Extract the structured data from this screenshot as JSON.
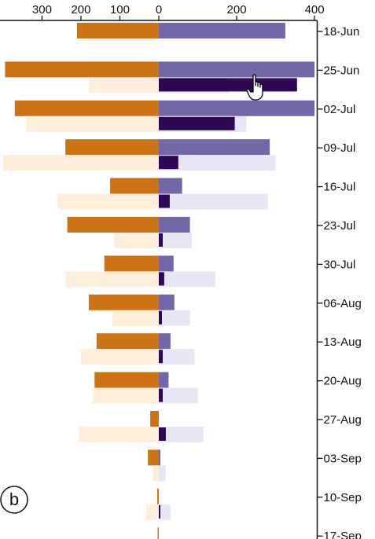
{
  "chart_data": {
    "type": "bar",
    "orientation": "horizontal-diverging",
    "panel_label": "b",
    "categories": [
      "18-Jun",
      "25-Jun",
      "02-Jul",
      "09-Jul",
      "16-Jul",
      "23-Jul",
      "30-Jul",
      "06-Aug",
      "13-Aug",
      "20-Aug",
      "27-Aug",
      "03-Sep",
      "10-Sep",
      "17-Sep"
    ],
    "x_ticks": [
      {
        "value": -300,
        "label": "300"
      },
      {
        "value": -200,
        "label": "200"
      },
      {
        "value": -100,
        "label": "100"
      },
      {
        "value": 0,
        "label": "0"
      },
      {
        "value": 200,
        "label": "200"
      },
      {
        "value": 400,
        "label": "400"
      }
    ],
    "xlim": [
      -400,
      400
    ],
    "grid": false,
    "series": [
      {
        "side": "left",
        "color": "#cc7317",
        "values": [
          210,
          395,
          370,
          240,
          125,
          235,
          140,
          180,
          160,
          165,
          22,
          28,
          4,
          3
        ]
      },
      {
        "side": "left",
        "color": "#fdefdb",
        "values": [
          0,
          180,
          340,
          400,
          260,
          115,
          240,
          120,
          200,
          170,
          205,
          15,
          33,
          0
        ]
      },
      {
        "side": "right",
        "color": "#7467a7",
        "values": [
          325,
          400,
          400,
          285,
          60,
          80,
          38,
          40,
          30,
          25,
          0,
          4,
          0,
          0
        ]
      },
      {
        "side": "right",
        "color": "#e8e6f4",
        "values": [
          0,
          180,
          225,
          300,
          280,
          85,
          145,
          80,
          92,
          100,
          115,
          18,
          30,
          0
        ]
      },
      {
        "side": "right",
        "color": "#2e0854",
        "values": [
          0,
          355,
          195,
          50,
          28,
          10,
          14,
          8,
          10,
          10,
          18,
          0,
          4,
          0
        ]
      }
    ]
  },
  "cursor": {
    "icon": "hand-pointer-icon"
  }
}
